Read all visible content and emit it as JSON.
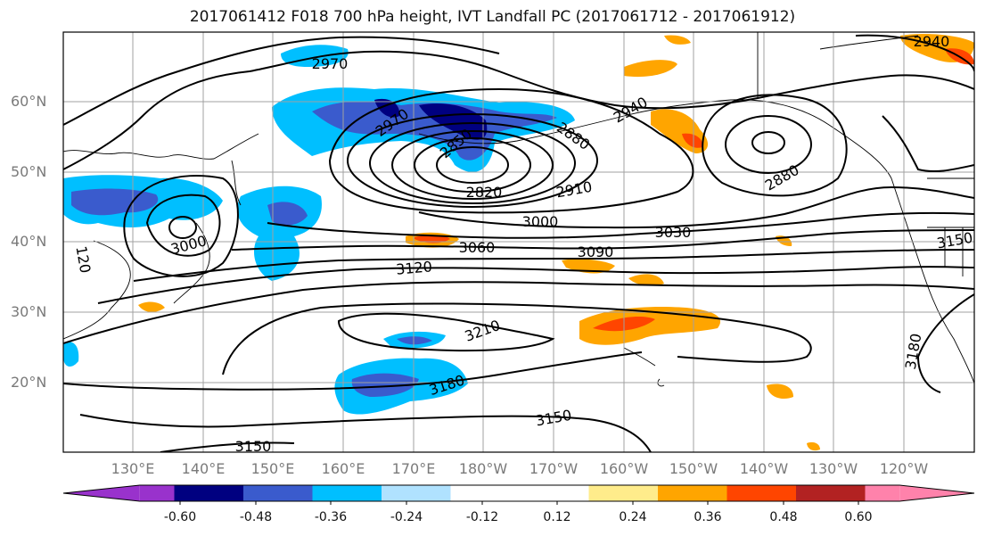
{
  "title": "2017061412 F018 700 hPa height, IVT Landfall PC (2017061712 - 2017061912)",
  "lat_labels": [
    "60°N",
    "50°N",
    "40°N",
    "30°N",
    "20°N"
  ],
  "lon_labels": [
    "130°E",
    "140°E",
    "150°E",
    "160°E",
    "170°E",
    "180°W",
    "170°W",
    "160°W",
    "150°W",
    "140°W",
    "130°W",
    "120°W"
  ],
  "contour_labels": [
    "2970",
    "2970",
    "2940",
    "2880",
    "2850",
    "2820",
    "2910",
    "2880",
    "3000",
    "3030",
    "3060",
    "3090",
    "3120",
    "3000",
    "3150",
    "3210",
    "3180",
    "3150",
    "3150",
    "3180",
    "2940",
    "120"
  ],
  "colorbar": {
    "colors": [
      "#9932cc",
      "#000080",
      "#3a5bcd",
      "#00bfff",
      "#b0e2ff",
      "#ffffff",
      "#ffffff",
      "#ffec8b",
      "#ffa500",
      "#ff4500",
      "#b22222",
      "#ff82ab"
    ],
    "labels": [
      "-0.60",
      "-0.48",
      "-0.36",
      "-0.24",
      "-0.12",
      "0.12",
      "0.24",
      "0.36",
      "0.48",
      "0.60"
    ]
  }
}
